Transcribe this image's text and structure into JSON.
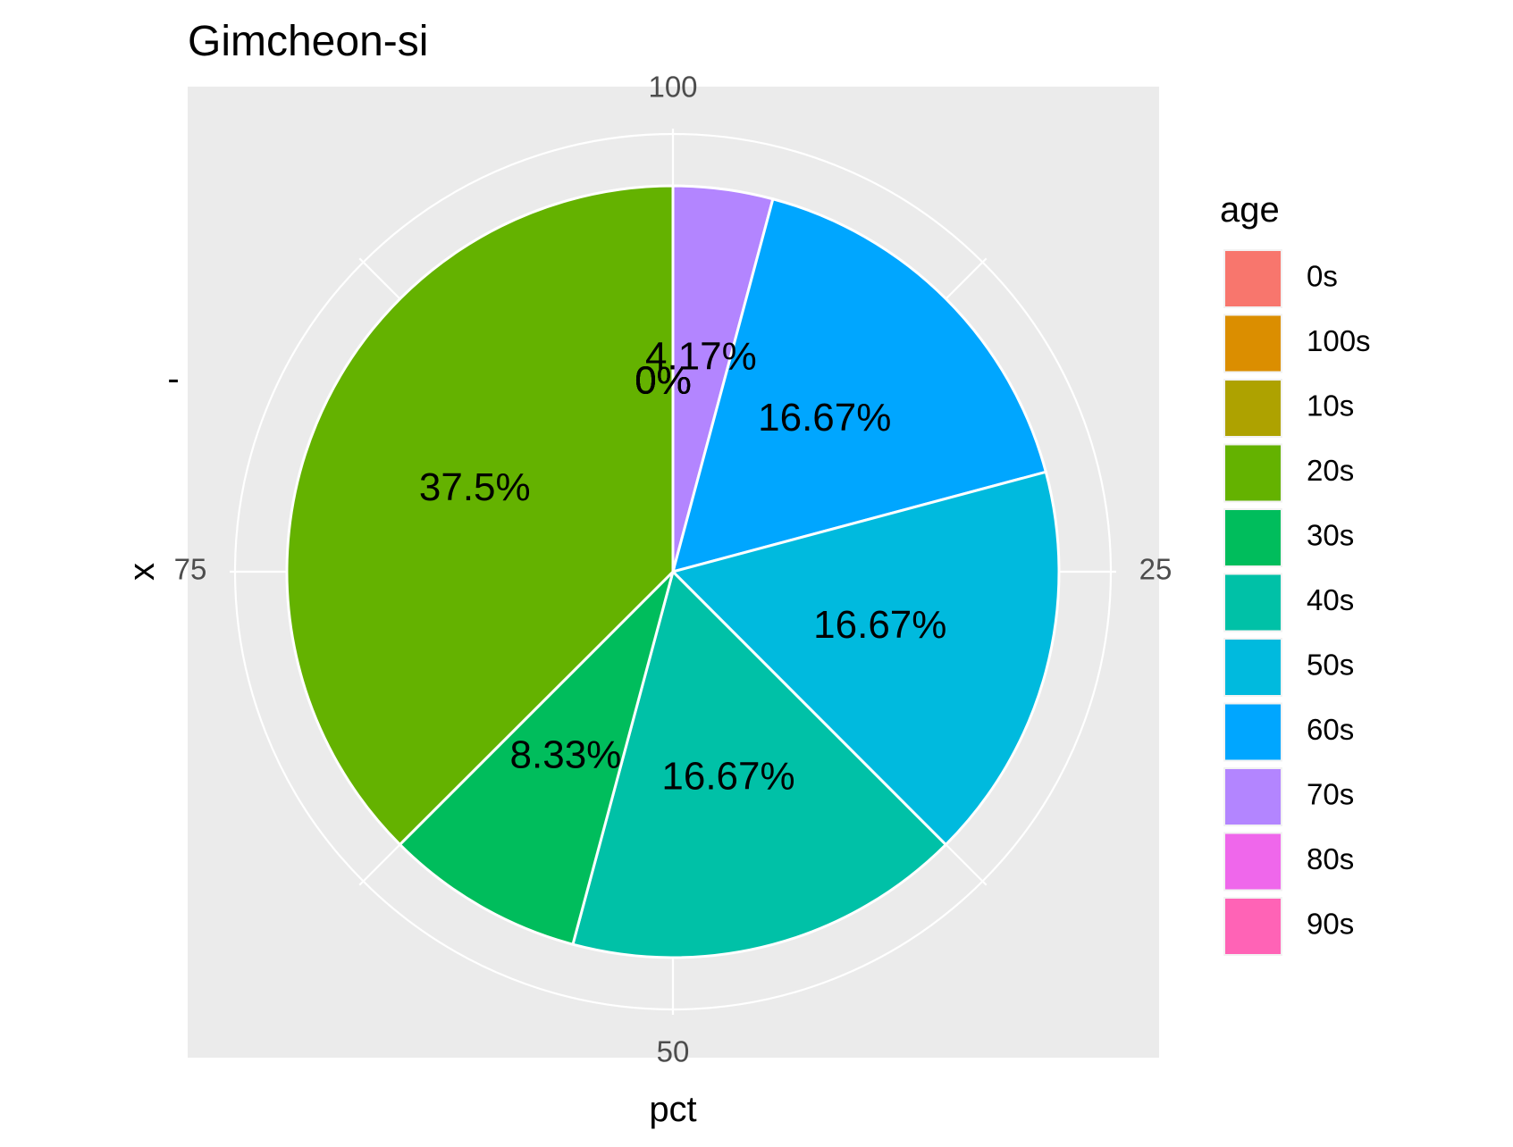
{
  "chart_data": {
    "type": "pie",
    "title": "Gimcheon-si",
    "xlabel": "pct",
    "ylabel": "x",
    "y_tick_label": "-",
    "angle_ticks": [
      {
        "label": "100",
        "value": 0
      },
      {
        "label": "25",
        "value": 25
      },
      {
        "label": "50",
        "value": 50
      },
      {
        "label": "75",
        "value": 75
      }
    ],
    "legend": {
      "title": "age",
      "position": "right"
    },
    "panel_background": "#ebebeb",
    "grid_color": "#ffffff",
    "categories": [
      "0s",
      "100s",
      "10s",
      "20s",
      "30s",
      "40s",
      "50s",
      "60s",
      "70s",
      "80s",
      "90s"
    ],
    "colors": [
      "#F8766D",
      "#DB8E00",
      "#AEA200",
      "#64B200",
      "#00BD5C",
      "#00C1A7",
      "#00BADE",
      "#00A6FF",
      "#B385FF",
      "#EF67EB",
      "#FF63B6"
    ],
    "values": [
      0,
      0,
      0,
      37.5,
      8.33,
      16.67,
      16.67,
      16.67,
      4.17,
      0,
      0
    ],
    "slice_labels": [
      "0%",
      "0%",
      "0%",
      "37.5%",
      "8.33%",
      "16.67%",
      "16.67%",
      "16.67%",
      "4.17%",
      "0%",
      "0%"
    ],
    "drawn_order": [
      "70s",
      "60s",
      "50s",
      "40s",
      "30s",
      "20s"
    ]
  }
}
